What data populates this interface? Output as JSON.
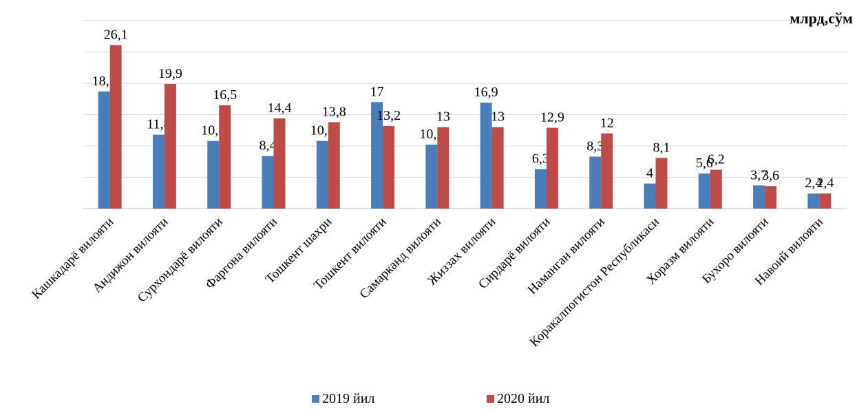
{
  "unit_label": "млрд,сўм",
  "chart_data": {
    "type": "bar",
    "categories": [
      "Кашкадарё вилояти",
      "Андижон вилояти",
      "Сурхондарё вилояти",
      "Фаргона вилояти",
      "Тошкент шахри",
      "Тошкент вилояти",
      "Самарканд вилояти",
      "Жиззах вилояти",
      "Сирдарё вилояти",
      "Наманган вилояти",
      "Коракалпогистон Республикаси",
      "Хоразм вилояти",
      "Бухоро вилояти",
      "Навоий вилояти"
    ],
    "series": [
      {
        "name": "2019 йил",
        "color": "#4a7ebb",
        "values": [
          18.7,
          11.8,
          10.8,
          8.4,
          10.8,
          17,
          10.2,
          16.9,
          6.3,
          8.3,
          4,
          5.6,
          3.7,
          2.4
        ],
        "labels": [
          "18,7",
          "11,8",
          "10,8",
          "8,4",
          "10,8",
          "17",
          "10,2",
          "16,9",
          "6,3",
          "8,3",
          "4",
          "5,6",
          "3,7",
          "2,4"
        ]
      },
      {
        "name": "2020 йил",
        "color": "#be4b48",
        "values": [
          26.1,
          19.9,
          16.5,
          14.4,
          13.8,
          13.2,
          13,
          13,
          12.9,
          12,
          8.1,
          6.2,
          3.6,
          2.4
        ],
        "labels": [
          "26,1",
          "19,9",
          "16,5",
          "14,4",
          "13,8",
          "13,2",
          "13",
          "13",
          "12,9",
          "12",
          "8,1",
          "6,2",
          "3,6",
          "2,4"
        ]
      }
    ],
    "ylim": [
      0,
      30
    ],
    "grid": true,
    "legend_position": "bottom",
    "title": "",
    "xlabel": "",
    "ylabel": ""
  }
}
